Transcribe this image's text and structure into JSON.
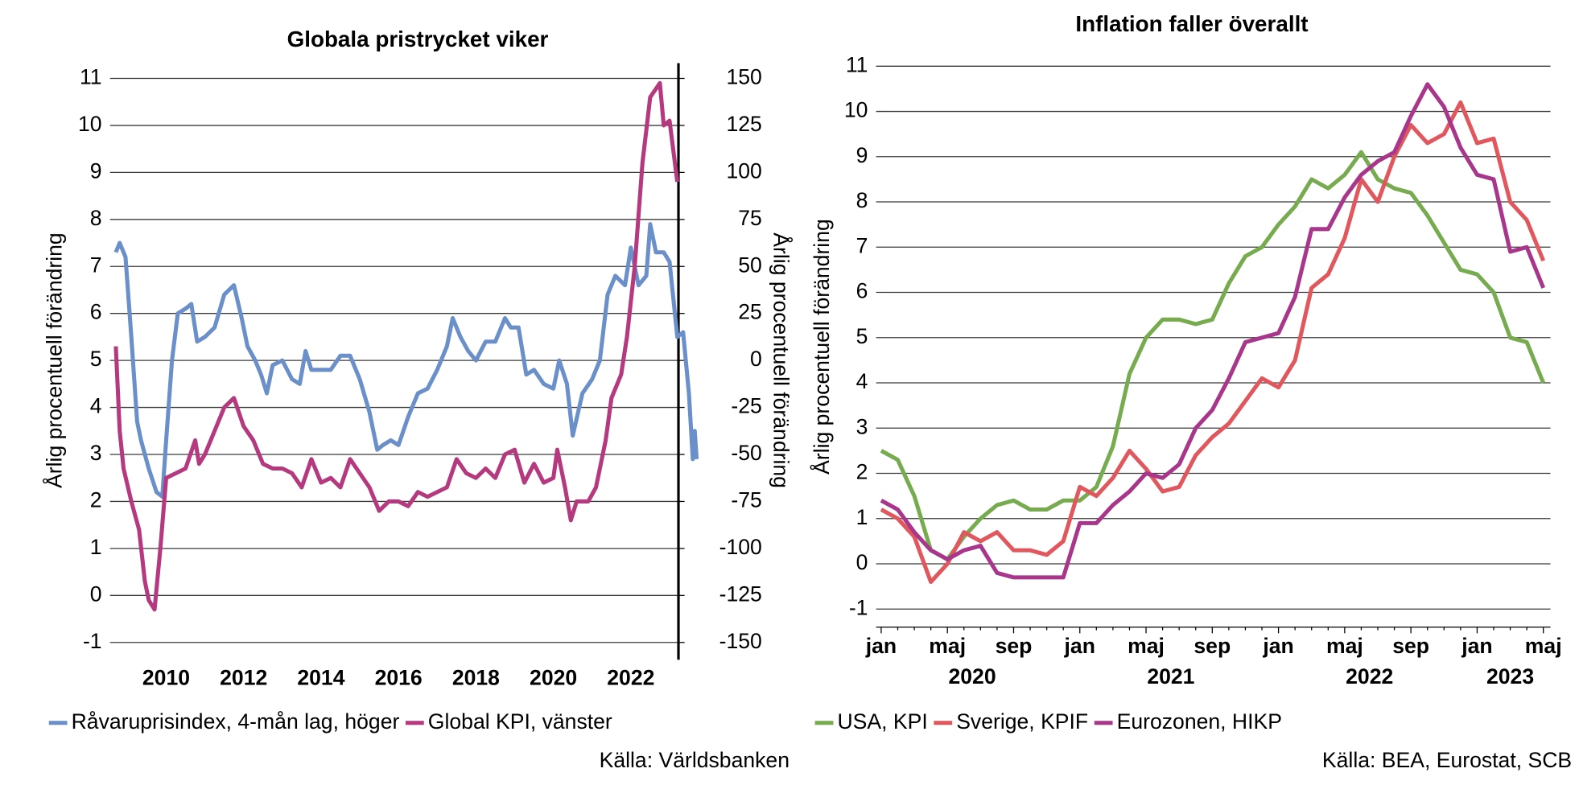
{
  "chart_data": [
    {
      "type": "line",
      "title": "Globala pristrycket viker",
      "ylabel": "Årlig procentuell förändring",
      "y2label": "Årlig procentuell förändring",
      "source": "Källa: Världsbanken",
      "xlim": [
        2008.55,
        2023.23
      ],
      "xticks": [
        2010,
        2012,
        2014,
        2016,
        2018,
        2020,
        2022
      ],
      "ylim": [
        -1,
        11
      ],
      "yticks": [
        -1,
        0,
        1,
        2,
        3,
        4,
        5,
        6,
        7,
        8,
        9,
        10,
        11
      ],
      "y2lim": [
        -150,
        150
      ],
      "y2ticks": [
        -150,
        -125,
        -100,
        -75,
        -50,
        -25,
        0,
        25,
        50,
        75,
        100,
        125,
        150
      ],
      "grid": true,
      "series": [
        {
          "name": "Råvaruprisindex, 4-mån lag, höger",
          "color": "#6a8fc9",
          "axis": "y2",
          "x": [
            2008.7,
            2008.8,
            2008.95,
            2009.1,
            2009.25,
            2009.35,
            2009.55,
            2009.75,
            2009.9,
            2010.0,
            2010.15,
            2010.3,
            2010.5,
            2010.65,
            2010.8,
            2011.0,
            2011.25,
            2011.5,
            2011.75,
            2011.95,
            2012.1,
            2012.3,
            2012.45,
            2012.6,
            2012.75,
            2013.0,
            2013.25,
            2013.45,
            2013.6,
            2013.75,
            2014.0,
            2014.25,
            2014.5,
            2014.75,
            2015.0,
            2015.25,
            2015.45,
            2015.6,
            2015.8,
            2016.0,
            2016.25,
            2016.5,
            2016.75,
            2017.0,
            2017.25,
            2017.4,
            2017.6,
            2017.8,
            2018.0,
            2018.25,
            2018.5,
            2018.75,
            2018.9,
            2019.1,
            2019.3,
            2019.5,
            2019.75,
            2020.0,
            2020.15,
            2020.35,
            2020.5,
            2020.75,
            2021.0,
            2021.2,
            2021.4,
            2021.6,
            2021.85,
            2022.0,
            2022.2,
            2022.4,
            2022.5,
            2022.65,
            2022.85,
            2023.0,
            2023.2,
            2023.35,
            2023.5,
            2023.6,
            2023.65,
            2023.7
          ],
          "values": [
            57.5,
            62.5,
            55,
            12.5,
            -32.5,
            -42.5,
            -57.5,
            -70,
            -72.5,
            -42.5,
            0,
            25,
            27.5,
            30,
            10,
            12.5,
            17.5,
            35,
            40,
            22.5,
            7.5,
            0,
            -7.5,
            -17.5,
            -2.5,
            0,
            -10,
            -12.5,
            5,
            -5,
            -5,
            -5,
            2.5,
            2.5,
            -10,
            -27.5,
            -47.5,
            -45,
            -42.5,
            -45,
            -30,
            -17.5,
            -15,
            -5,
            7.5,
            22.5,
            12.5,
            5,
            0,
            10,
            10,
            22.5,
            17.5,
            17.5,
            -7.5,
            -5,
            -12.5,
            -15,
            0,
            -12.5,
            -40,
            -17.5,
            -10,
            0,
            35,
            45,
            40,
            60,
            40,
            45,
            72.5,
            57.5,
            57.5,
            52.5,
            12.5,
            15,
            -17.5,
            -52.5,
            -37.5,
            -52.5
          ]
        },
        {
          "name": "Global KPI, vänster",
          "color": "#b5397f",
          "x": [
            2008.7,
            2008.8,
            2008.9,
            2009.1,
            2009.3,
            2009.45,
            2009.55,
            2009.7,
            2009.85,
            2010.0,
            2010.25,
            2010.5,
            2010.75,
            2010.85,
            2011.0,
            2011.25,
            2011.5,
            2011.75,
            2012.0,
            2012.25,
            2012.5,
            2012.75,
            2013.0,
            2013.25,
            2013.5,
            2013.75,
            2014.0,
            2014.25,
            2014.5,
            2014.75,
            2015.0,
            2015.25,
            2015.5,
            2015.75,
            2016.0,
            2016.25,
            2016.5,
            2016.75,
            2017.0,
            2017.25,
            2017.5,
            2017.75,
            2018.0,
            2018.25,
            2018.5,
            2018.75,
            2019.0,
            2019.25,
            2019.5,
            2019.75,
            2020.0,
            2020.1,
            2020.3,
            2020.45,
            2020.6,
            2020.9,
            2021.1,
            2021.35,
            2021.5,
            2021.75,
            2021.9,
            2022.1,
            2022.3,
            2022.5,
            2022.75,
            2022.85,
            2023.0,
            2023.2
          ],
          "values": [
            5.3,
            3.5,
            2.7,
            2.0,
            1.4,
            0.3,
            -0.1,
            -0.3,
            1.0,
            2.5,
            2.6,
            2.7,
            3.3,
            2.8,
            3.0,
            3.5,
            4.0,
            4.2,
            3.6,
            3.3,
            2.8,
            2.7,
            2.7,
            2.6,
            2.3,
            2.9,
            2.4,
            2.5,
            2.3,
            2.9,
            2.6,
            2.3,
            1.8,
            2.0,
            2.0,
            1.9,
            2.2,
            2.1,
            2.2,
            2.3,
            2.9,
            2.6,
            2.5,
            2.7,
            2.5,
            3.0,
            3.1,
            2.4,
            2.8,
            2.4,
            2.5,
            3.1,
            2.3,
            1.6,
            2.0,
            2.0,
            2.3,
            3.3,
            4.2,
            4.7,
            5.5,
            7.0,
            9.2,
            10.6,
            10.9,
            10.0,
            10.1,
            8.8
          ]
        }
      ]
    },
    {
      "type": "line",
      "title": "Inflation faller överallt",
      "ylabel": "Årlig procentuell förändring",
      "source": "Källa: BEA, Eurostat, SCB",
      "categories": [
        "jan",
        null,
        null,
        null,
        "maj",
        null,
        null,
        null,
        "sep",
        null,
        null,
        null,
        "jan",
        null,
        null,
        null,
        "maj",
        null,
        null,
        null,
        "sep",
        null,
        null,
        null,
        "jan",
        null,
        null,
        null,
        "maj",
        null,
        null,
        null,
        "sep",
        null,
        null,
        null,
        "jan",
        null,
        null,
        null,
        "maj"
      ],
      "x_groups": [
        "2020",
        "2021",
        "2022",
        "2023"
      ],
      "ylim": [
        -1.4,
        11
      ],
      "yticks": [
        -1,
        0,
        1,
        2,
        3,
        4,
        5,
        6,
        7,
        8,
        9,
        10,
        11
      ],
      "grid": true,
      "series": [
        {
          "name": "USA, KPI",
          "color": "#77ab4f",
          "values": [
            2.5,
            2.3,
            1.5,
            0.3,
            0.1,
            0.6,
            1.0,
            1.3,
            1.4,
            1.2,
            1.2,
            1.4,
            1.4,
            1.7,
            2.6,
            4.2,
            5.0,
            5.4,
            5.4,
            5.3,
            5.4,
            6.2,
            6.8,
            7.0,
            7.5,
            7.9,
            8.5,
            8.3,
            8.6,
            9.1,
            8.5,
            8.3,
            8.2,
            7.7,
            7.1,
            6.5,
            6.4,
            6.0,
            5.0,
            4.9,
            4.0
          ]
        },
        {
          "name": "Sverige, KPIF",
          "color": "#e0585e",
          "values": [
            1.2,
            1.0,
            0.6,
            -0.4,
            0.0,
            0.7,
            0.5,
            0.7,
            0.3,
            0.3,
            0.2,
            0.5,
            1.7,
            1.5,
            1.9,
            2.5,
            2.1,
            1.6,
            1.7,
            2.4,
            2.8,
            3.1,
            3.6,
            4.1,
            3.9,
            4.5,
            6.1,
            6.4,
            7.2,
            8.5,
            8.0,
            9.0,
            9.7,
            9.3,
            9.5,
            10.2,
            9.3,
            9.4,
            8.0,
            7.6,
            6.7
          ]
        },
        {
          "name": "Eurozonen, HIKP",
          "color": "#a8368a",
          "values": [
            1.4,
            1.2,
            0.7,
            0.3,
            0.1,
            0.3,
            0.4,
            -0.2,
            -0.3,
            -0.3,
            -0.3,
            -0.3,
            0.9,
            0.9,
            1.3,
            1.6,
            2.0,
            1.9,
            2.2,
            3.0,
            3.4,
            4.1,
            4.9,
            5.0,
            5.1,
            5.9,
            7.4,
            7.4,
            8.1,
            8.6,
            8.9,
            9.1,
            9.9,
            10.6,
            10.1,
            9.2,
            8.6,
            8.5,
            6.9,
            7.0,
            6.1
          ]
        }
      ]
    }
  ]
}
